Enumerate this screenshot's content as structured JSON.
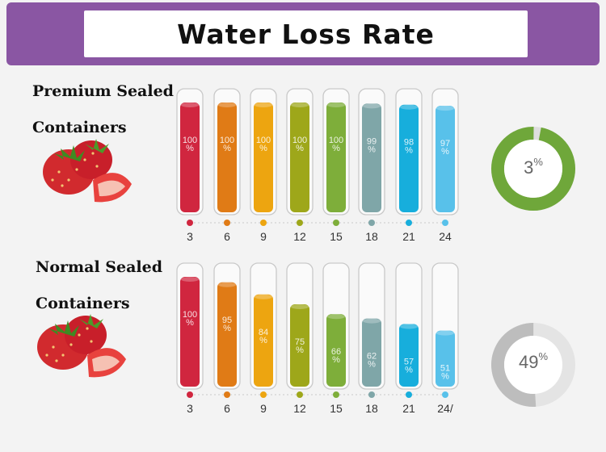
{
  "title": "Water Loss Rate",
  "colors": [
    "#d0263f",
    "#e07b16",
    "#eda510",
    "#9ea71a",
    "#7eae3a",
    "#7fa6a8",
    "#17aedc",
    "#58c1ea"
  ],
  "chart_data": [
    {
      "type": "bar",
      "title": "Premium Sealed Containers",
      "label_line1": "Premium Sealed",
      "label_line2": "Containers",
      "categories": [
        "3",
        "6",
        "9",
        "12",
        "15",
        "18",
        "21",
        "24"
      ],
      "values": [
        100,
        100,
        100,
        100,
        100,
        99,
        98,
        97
      ],
      "value_labels": [
        "100",
        "100",
        "100",
        "100",
        "100",
        "99",
        "98",
        "97"
      ],
      "value_unit": "%",
      "ylim": [
        0,
        100
      ],
      "donut": {
        "value": 3,
        "label": "3",
        "unit": "%",
        "color": "#6fa73a",
        "track": "#dedede"
      }
    },
    {
      "type": "bar",
      "title": "Normal Sealed Containers",
      "label_line1": "Normal Sealed",
      "label_line2": "Containers",
      "categories": [
        "3",
        "6",
        "9",
        "12",
        "15",
        "18",
        "21",
        "24/"
      ],
      "values": [
        100,
        95,
        84,
        75,
        66,
        62,
        57,
        51
      ],
      "value_labels": [
        "100",
        "95",
        "84",
        "75",
        "66",
        "62",
        "57",
        "51"
      ],
      "value_unit": "%",
      "ylim": [
        0,
        100
      ],
      "donut": {
        "value": 49,
        "label": "49",
        "unit": "%",
        "color": "#bdbdbd",
        "track": "#e4e4e4"
      }
    }
  ]
}
